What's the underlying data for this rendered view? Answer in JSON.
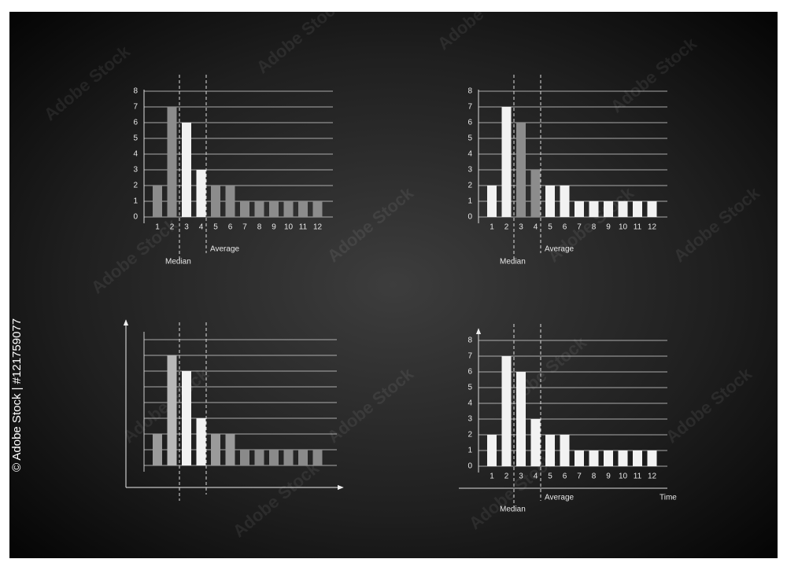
{
  "watermark": "Adobe Stock",
  "side_text": "© Adobe Stock | #121759077",
  "chart_data": [
    {
      "type": "bar",
      "categories": [
        "1",
        "2",
        "3",
        "4",
        "5",
        "6",
        "7",
        "8",
        "9",
        "10",
        "11",
        "12"
      ],
      "values": [
        2,
        7,
        6,
        3,
        2,
        2,
        1,
        1,
        1,
        1,
        1,
        1
      ],
      "colors": [
        "#8c8c8c",
        "#8c8c8c",
        "#f2f2f2",
        "#f2f2f2",
        "#8c8c8c",
        "#8c8c8c",
        "#8c8c8c",
        "#8c8c8c",
        "#8c8c8c",
        "#8c8c8c",
        "#8c8c8c",
        "#8c8c8c"
      ],
      "ylim": [
        0,
        8
      ],
      "yticks": [
        0,
        1,
        2,
        3,
        4,
        5,
        6,
        7,
        8
      ],
      "grid": true,
      "annotations": [
        {
          "text": "Median"
        },
        {
          "text": "Average"
        }
      ]
    },
    {
      "type": "bar",
      "categories": [
        "1",
        "2",
        "3",
        "4",
        "5",
        "6",
        "7",
        "8",
        "9",
        "10",
        "11",
        "12"
      ],
      "values": [
        2,
        7,
        6,
        3,
        2,
        2,
        1,
        1,
        1,
        1,
        1,
        1
      ],
      "colors": [
        "#f2f2f2",
        "#f2f2f2",
        "#8c8c8c",
        "#8c8c8c",
        "#f2f2f2",
        "#f2f2f2",
        "#f2f2f2",
        "#f2f2f2",
        "#f2f2f2",
        "#f2f2f2",
        "#f2f2f2",
        "#f2f2f2"
      ],
      "ylim": [
        0,
        8
      ],
      "yticks": [
        0,
        1,
        2,
        3,
        4,
        5,
        6,
        7,
        8
      ],
      "grid": true,
      "annotations": [
        {
          "text": "Median"
        },
        {
          "text": "Average"
        }
      ]
    },
    {
      "type": "bar",
      "categories": [
        null,
        null,
        null,
        null,
        null,
        null,
        null,
        null,
        null,
        null,
        null,
        null
      ],
      "values": [
        2,
        7,
        6,
        3,
        2,
        2,
        1,
        1,
        1,
        1,
        1,
        1
      ],
      "colors": [
        "#9a9a9a",
        "#b8b8b8",
        "#f2f2f2",
        "#f2f2f2",
        "#9a9a9a",
        "#9a9a9a",
        "#8a8a8a",
        "#8a8a8a",
        "#8a8a8a",
        "#8a8a8a",
        "#8a8a8a",
        "#8a8a8a"
      ],
      "ylim": [
        0,
        8
      ],
      "yticks": [
        0,
        1,
        2,
        3,
        4,
        5,
        6,
        7,
        8
      ],
      "grid": true,
      "show_tick_labels": false
    },
    {
      "type": "bar",
      "categories": [
        "1",
        "2",
        "3",
        "4",
        "5",
        "6",
        "7",
        "8",
        "9",
        "10",
        "11",
        "12"
      ],
      "values": [
        2,
        7,
        6,
        3,
        2,
        2,
        1,
        1,
        1,
        1,
        1,
        1
      ],
      "colors": [
        "#f2f2f2",
        "#f2f2f2",
        "#f2f2f2",
        "#f2f2f2",
        "#f2f2f2",
        "#f2f2f2",
        "#f2f2f2",
        "#f2f2f2",
        "#f2f2f2",
        "#f2f2f2",
        "#f2f2f2",
        "#f2f2f2"
      ],
      "ylim": [
        0,
        8
      ],
      "yticks": [
        0,
        1,
        2,
        3,
        4,
        5,
        6,
        7,
        8
      ],
      "grid": true,
      "xlabel": "Time",
      "annotations": [
        {
          "text": "Median"
        },
        {
          "text": "Average"
        }
      ]
    }
  ]
}
